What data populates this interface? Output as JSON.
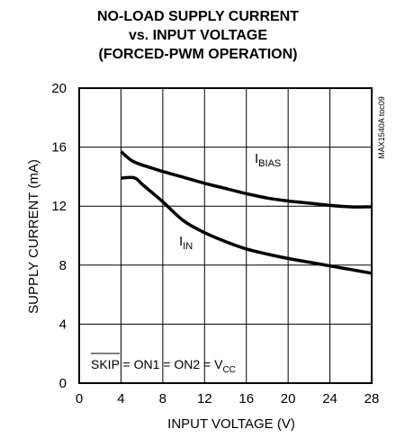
{
  "chart_data": {
    "type": "line",
    "title_lines": [
      "NO-LOAD SUPPLY CURRENT",
      "vs. INPUT VOLTAGE",
      "(FORCED-PWM OPERATION)"
    ],
    "xlabel": "INPUT VOLTAGE (V)",
    "ylabel": "SUPPLY CURRENT (mA)",
    "xlim": [
      0,
      28
    ],
    "ylim": [
      0,
      20
    ],
    "xticks": [
      0,
      4,
      8,
      12,
      16,
      20,
      24,
      28
    ],
    "yticks": [
      0,
      4,
      8,
      12,
      16,
      20
    ],
    "grid": true,
    "watermark": "MAX1540A toc09",
    "annotation": {
      "skip": "SKIP",
      "rest": " = ON1 = ON2 = V",
      "sub": "CC"
    },
    "series": [
      {
        "name": "IBIAS",
        "label_main": "I",
        "label_sub": "BIAS",
        "x": [
          4,
          5,
          6,
          8,
          10,
          12,
          14,
          16,
          18,
          20,
          22,
          24,
          26,
          28
        ],
        "y": [
          15.7,
          15.1,
          14.8,
          14.35,
          13.95,
          13.55,
          13.2,
          12.85,
          12.55,
          12.35,
          12.2,
          12.05,
          11.95,
          11.95
        ]
      },
      {
        "name": "IIN",
        "label_main": "I",
        "label_sub": "IN",
        "x": [
          4,
          5,
          5.5,
          6,
          7,
          8,
          10,
          12,
          14,
          16,
          18,
          20,
          22,
          24,
          26,
          28
        ],
        "y": [
          13.9,
          13.95,
          13.85,
          13.5,
          12.9,
          12.3,
          11.0,
          10.2,
          9.6,
          9.1,
          8.75,
          8.45,
          8.2,
          7.95,
          7.7,
          7.45
        ]
      }
    ]
  }
}
